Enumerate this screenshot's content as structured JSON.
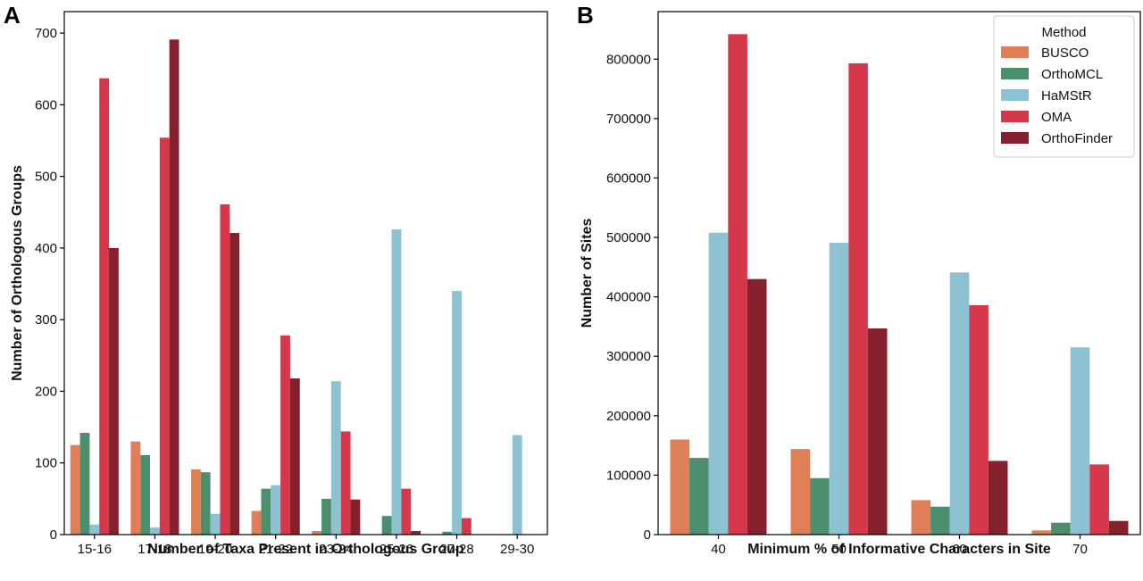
{
  "panels": [
    {
      "label": "A",
      "chart_data": {
        "type": "bar",
        "categories": [
          "15-16",
          "17-18",
          "19-20",
          "21-22",
          "23-24",
          "25-26",
          "27-28",
          "29-30"
        ],
        "series": [
          {
            "name": "BUSCO",
            "values": [
              125,
              130,
              91,
              33,
              5,
              0,
              0,
              0
            ]
          },
          {
            "name": "OrthoMCL",
            "values": [
              142,
              111,
              87,
              64,
              50,
              26,
              4,
              0
            ]
          },
          {
            "name": "HaMStR",
            "values": [
              14,
              10,
              29,
              69,
              214,
              426,
              340,
              139
            ]
          },
          {
            "name": "OMA",
            "values": [
              637,
              554,
              461,
              278,
              144,
              64,
              23,
              0
            ]
          },
          {
            "name": "OrthoFinder",
            "values": [
              400,
              691,
              421,
              218,
              49,
              5,
              0,
              0
            ]
          }
        ],
        "xlabel": "Number of Taxa Present in Orthologous Group",
        "ylabel": "Number of Orthologous Groups",
        "ylim": [
          0,
          730
        ],
        "yticks": [
          "0",
          "100",
          "200",
          "300",
          "400",
          "500",
          "600",
          "700"
        ],
        "ytick_values": [
          0,
          100,
          200,
          300,
          400,
          500,
          600,
          700
        ],
        "grid": false
      }
    },
    {
      "label": "B",
      "chart_data": {
        "type": "bar",
        "categories": [
          "40",
          "50",
          "60",
          "70"
        ],
        "series": [
          {
            "name": "BUSCO",
            "values": [
              160000,
              144000,
              58000,
              7000
            ]
          },
          {
            "name": "OrthoMCL",
            "values": [
              129000,
              95000,
              47000,
              20000
            ]
          },
          {
            "name": "HaMStR",
            "values": [
              508000,
              491000,
              441000,
              315000
            ]
          },
          {
            "name": "OMA",
            "values": [
              842000,
              793000,
              386000,
              118000
            ]
          },
          {
            "name": "OrthoFinder",
            "values": [
              430000,
              347000,
              124000,
              23000
            ]
          }
        ],
        "xlabel": "Minimum % of Informative Characters in Site",
        "ylabel": "Number of Sites",
        "ylim": [
          0,
          880000
        ],
        "yticks": [
          "0",
          "100000",
          "200000",
          "300000",
          "400000",
          "500000",
          "600000",
          "700000",
          "800000"
        ],
        "ytick_values": [
          0,
          100000,
          200000,
          300000,
          400000,
          500000,
          600000,
          700000,
          800000
        ],
        "grid": false,
        "legend": {
          "title": "Method",
          "placement": "top-right"
        }
      }
    }
  ],
  "colors": {
    "BUSCO": "#e07f57",
    "OrthoMCL": "#4c8f6f",
    "HaMStR": "#8dc2d2",
    "OMA": "#d5374b",
    "OrthoFinder": "#84212c"
  }
}
